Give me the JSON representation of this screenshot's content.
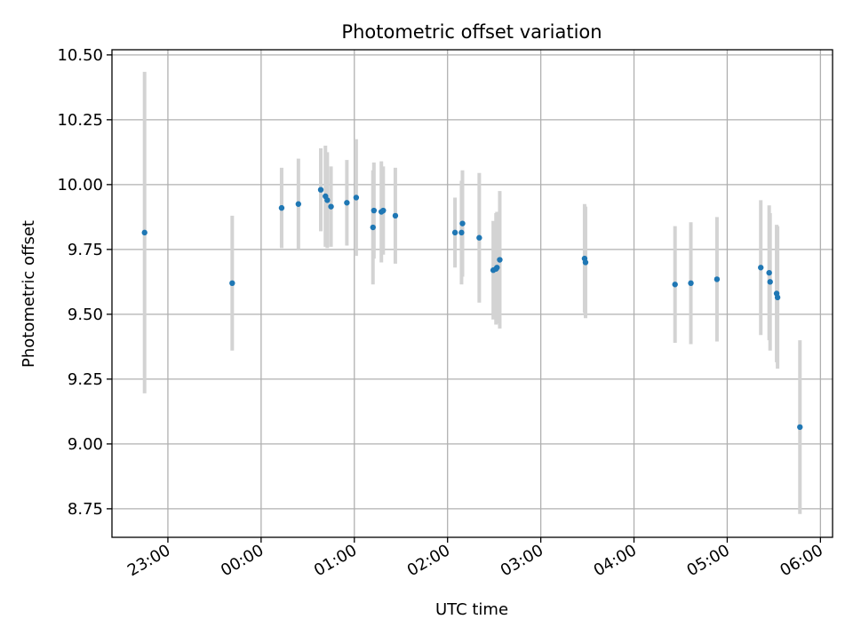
{
  "chart_data": {
    "type": "scatter",
    "title": "Photometric offset variation",
    "xlabel": "UTC time",
    "ylabel": "Photometric offset",
    "x_unit": "hours",
    "xlim": [
      -1.6,
      6.13
    ],
    "ylim": [
      8.64,
      10.52
    ],
    "x_ticks": [
      {
        "value": -1.0,
        "label": "23:00"
      },
      {
        "value": 0.0,
        "label": "00:00"
      },
      {
        "value": 1.0,
        "label": "01:00"
      },
      {
        "value": 2.0,
        "label": "02:00"
      },
      {
        "value": 3.0,
        "label": "03:00"
      },
      {
        "value": 4.0,
        "label": "04:00"
      },
      {
        "value": 5.0,
        "label": "05:00"
      },
      {
        "value": 6.0,
        "label": "06:00"
      }
    ],
    "y_ticks": [
      {
        "value": 8.75,
        "label": "8.75"
      },
      {
        "value": 9.0,
        "label": "9.00"
      },
      {
        "value": 9.25,
        "label": "9.25"
      },
      {
        "value": 9.5,
        "label": "9.50"
      },
      {
        "value": 9.75,
        "label": "9.75"
      },
      {
        "value": 10.0,
        "label": "10.00"
      },
      {
        "value": 10.25,
        "label": "10.25"
      },
      {
        "value": 10.5,
        "label": "10.50"
      }
    ],
    "grid": true,
    "colors": {
      "points": "#1f77b4",
      "errorbars": "#d3d3d3",
      "grid": "#b0b0b0",
      "axes": "#000000"
    },
    "points": [
      {
        "x": -1.25,
        "y": 9.815,
        "err": 0.62
      },
      {
        "x": -0.31,
        "y": 9.62,
        "err": 0.26
      },
      {
        "x": 0.22,
        "y": 9.91,
        "err": 0.155
      },
      {
        "x": 0.4,
        "y": 9.925,
        "err": 0.175
      },
      {
        "x": 0.64,
        "y": 9.98,
        "err": 0.16
      },
      {
        "x": 0.69,
        "y": 9.955,
        "err": 0.195
      },
      {
        "x": 0.71,
        "y": 9.94,
        "err": 0.185
      },
      {
        "x": 0.75,
        "y": 9.915,
        "err": 0.155
      },
      {
        "x": 0.92,
        "y": 9.93,
        "err": 0.165
      },
      {
        "x": 1.02,
        "y": 9.95,
        "err": 0.225
      },
      {
        "x": 1.2,
        "y": 9.835,
        "err": 0.22
      },
      {
        "x": 1.21,
        "y": 9.9,
        "err": 0.185
      },
      {
        "x": 1.29,
        "y": 9.895,
        "err": 0.195
      },
      {
        "x": 1.31,
        "y": 9.9,
        "err": 0.17
      },
      {
        "x": 1.44,
        "y": 9.88,
        "err": 0.185
      },
      {
        "x": 2.08,
        "y": 9.815,
        "err": 0.135
      },
      {
        "x": 2.15,
        "y": 9.815,
        "err": 0.2
      },
      {
        "x": 2.16,
        "y": 9.85,
        "err": 0.205
      },
      {
        "x": 2.34,
        "y": 9.795,
        "err": 0.25
      },
      {
        "x": 2.49,
        "y": 9.67,
        "err": 0.19
      },
      {
        "x": 2.52,
        "y": 9.675,
        "err": 0.215
      },
      {
        "x": 2.53,
        "y": 9.68,
        "err": 0.215
      },
      {
        "x": 2.56,
        "y": 9.71,
        "err": 0.265
      },
      {
        "x": 3.47,
        "y": 9.715,
        "err": 0.21
      },
      {
        "x": 3.48,
        "y": 9.7,
        "err": 0.215
      },
      {
        "x": 4.44,
        "y": 9.615,
        "err": 0.225
      },
      {
        "x": 4.61,
        "y": 9.62,
        "err": 0.235
      },
      {
        "x": 4.89,
        "y": 9.635,
        "err": 0.24
      },
      {
        "x": 5.36,
        "y": 9.68,
        "err": 0.26
      },
      {
        "x": 5.45,
        "y": 9.66,
        "err": 0.26
      },
      {
        "x": 5.46,
        "y": 9.625,
        "err": 0.265
      },
      {
        "x": 5.53,
        "y": 9.58,
        "err": 0.265
      },
      {
        "x": 5.54,
        "y": 9.565,
        "err": 0.275
      },
      {
        "x": 5.78,
        "y": 9.065,
        "err": 0.335
      }
    ]
  }
}
